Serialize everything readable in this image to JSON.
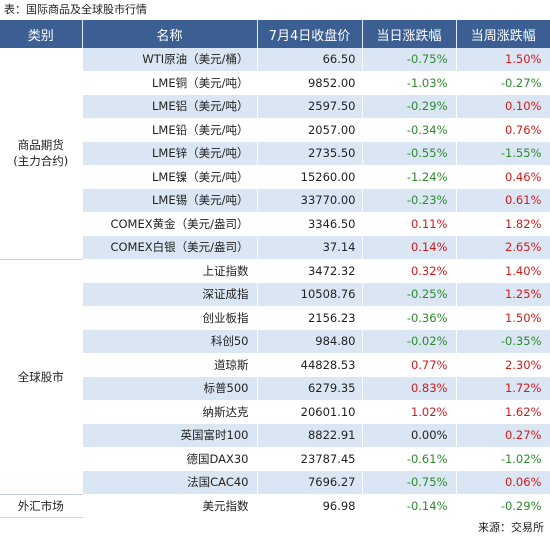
{
  "caption": "表：国际商品及全球股市行情",
  "headers": [
    "类别",
    "名称",
    "7月4日收盘价",
    "当日涨跌幅",
    "当周涨跌幅"
  ],
  "groups": [
    {
      "category": "商品期货\n(主力合约)",
      "rows": [
        {
          "name": "WTI原油（美元/桶）",
          "price": "66.50",
          "day": "-0.75%",
          "week": "1.50%"
        },
        {
          "name": "LME铜（美元/吨）",
          "price": "9852.00",
          "day": "-1.03%",
          "week": "-0.27%"
        },
        {
          "name": "LME铝（美元/吨）",
          "price": "2597.50",
          "day": "-0.29%",
          "week": "0.10%"
        },
        {
          "name": "LME铅（美元/吨）",
          "price": "2057.00",
          "day": "-0.34%",
          "week": "0.76%"
        },
        {
          "name": "LME锌（美元/吨）",
          "price": "2735.50",
          "day": "-0.55%",
          "week": "-1.55%"
        },
        {
          "name": "LME镍（美元/吨）",
          "price": "15260.00",
          "day": "-1.24%",
          "week": "0.46%"
        },
        {
          "name": "LME锡（美元/吨）",
          "price": "33770.00",
          "day": "-0.23%",
          "week": "0.61%"
        },
        {
          "name": "COMEX黄金（美元/盎司）",
          "price": "3346.50",
          "day": "0.11%",
          "week": "1.82%"
        },
        {
          "name": "COMEX白银（美元/盎司）",
          "price": "37.14",
          "day": "0.14%",
          "week": "2.65%"
        }
      ]
    },
    {
      "category": "全球股市",
      "rows": [
        {
          "name": "上证指数",
          "price": "3472.32",
          "day": "0.32%",
          "week": "1.40%"
        },
        {
          "name": "深证成指",
          "price": "10508.76",
          "day": "-0.25%",
          "week": "1.25%"
        },
        {
          "name": "创业板指",
          "price": "2156.23",
          "day": "-0.36%",
          "week": "1.50%"
        },
        {
          "name": "科创50",
          "price": "984.80",
          "day": "-0.02%",
          "week": "-0.35%"
        },
        {
          "name": "道琼斯",
          "price": "44828.53",
          "day": "0.77%",
          "week": "2.30%"
        },
        {
          "name": "标普500",
          "price": "6279.35",
          "day": "0.83%",
          "week": "1.72%"
        },
        {
          "name": "纳斯达克",
          "price": "20601.10",
          "day": "1.02%",
          "week": "1.62%"
        },
        {
          "name": "英国富时100",
          "price": "8822.91",
          "day": "0.00%",
          "week": "0.27%"
        },
        {
          "name": "德国DAX30",
          "price": "23787.45",
          "day": "-0.61%",
          "week": "-1.02%"
        },
        {
          "name": "法国CAC40",
          "price": "7696.27",
          "day": "-0.75%",
          "week": "0.06%"
        }
      ]
    },
    {
      "category": "外汇市场",
      "rows": [
        {
          "name": "美元指数",
          "price": "96.98",
          "day": "-0.14%",
          "week": "-0.29%"
        }
      ]
    }
  ],
  "source": "来源：交易所",
  "colors": {
    "header_bg": "#3b5f93",
    "row_shade": "#dbe6f4",
    "up": "#d11a1a",
    "down": "#2d8a2d"
  }
}
